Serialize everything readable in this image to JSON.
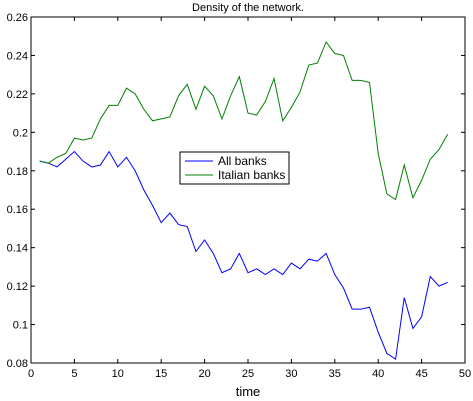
{
  "chart_data": {
    "type": "line",
    "title": "Density of the network.",
    "xlabel": "time",
    "ylabel": "",
    "xlim": [
      0,
      50
    ],
    "ylim": [
      0.08,
      0.26
    ],
    "xticks": [
      0,
      5,
      10,
      15,
      20,
      25,
      30,
      35,
      40,
      45,
      50
    ],
    "yticks": [
      0.08,
      0.1,
      0.12,
      0.14,
      0.16,
      0.18,
      0.2,
      0.22,
      0.24,
      0.26
    ],
    "ytick_labels": [
      "0.08",
      "0.1",
      "0.12",
      "0.14",
      "0.16",
      "0.18",
      "0.2",
      "0.22",
      "0.24",
      "0.26"
    ],
    "grid": false,
    "legend_position": "center",
    "x": [
      1,
      2,
      3,
      4,
      5,
      6,
      7,
      8,
      9,
      10,
      11,
      12,
      13,
      14,
      15,
      16,
      17,
      18,
      19,
      20,
      21,
      22,
      23,
      24,
      25,
      26,
      27,
      28,
      29,
      30,
      31,
      32,
      33,
      34,
      35,
      36,
      37,
      38,
      39,
      40,
      41,
      42,
      43,
      44,
      45,
      46,
      47,
      48
    ],
    "series": [
      {
        "name": "All banks",
        "color": "#0000ff",
        "values": [
          0.185,
          0.184,
          0.182,
          0.186,
          0.19,
          0.185,
          0.182,
          0.183,
          0.19,
          0.182,
          0.187,
          0.18,
          0.17,
          0.162,
          0.153,
          0.158,
          0.152,
          0.151,
          0.138,
          0.144,
          0.137,
          0.127,
          0.129,
          0.137,
          0.127,
          0.129,
          0.126,
          0.129,
          0.126,
          0.132,
          0.129,
          0.134,
          0.133,
          0.137,
          0.126,
          0.119,
          0.108,
          0.108,
          0.109,
          0.096,
          0.085,
          0.082,
          0.114,
          0.098,
          0.104,
          0.125,
          0.12,
          0.122
        ]
      },
      {
        "name": "Italian banks",
        "color": "#008000",
        "values": [
          0.185,
          0.184,
          0.187,
          0.189,
          0.197,
          0.196,
          0.197,
          0.207,
          0.214,
          0.214,
          0.223,
          0.22,
          0.212,
          0.206,
          0.207,
          0.208,
          0.219,
          0.225,
          0.212,
          0.224,
          0.219,
          0.207,
          0.219,
          0.229,
          0.21,
          0.209,
          0.216,
          0.228,
          0.206,
          0.213,
          0.221,
          0.235,
          0.236,
          0.247,
          0.241,
          0.24,
          0.227,
          0.227,
          0.226,
          0.189,
          0.168,
          0.165,
          0.183,
          0.166,
          0.175,
          0.186,
          0.191,
          0.199
        ]
      }
    ]
  }
}
